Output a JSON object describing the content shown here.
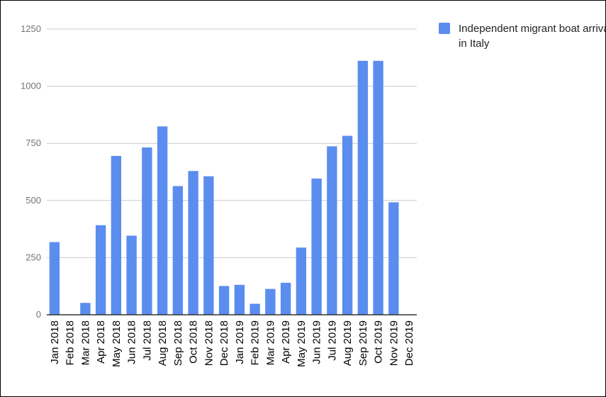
{
  "chart_data": {
    "type": "bar",
    "categories": [
      "Jan 2018",
      "Feb 2018",
      "Mar 2018",
      "Apr 2018",
      "May 2018",
      "Jun 2018",
      "Jul 2018",
      "Aug 2018",
      "Sep 2018",
      "Oct 2018",
      "Nov 2018",
      "Dec 2018",
      "Jan 2019",
      "Feb 2019",
      "Mar 2019",
      "Apr 2019",
      "May 2019",
      "Jun 2019",
      "Jul 2019",
      "Aug 2019",
      "Sep 2019",
      "Oct 2019",
      "Nov 2019",
      "Dec 2019"
    ],
    "series": [
      {
        "name": "Independent migrant boat arrivals in Italy",
        "values": [
          318,
          0,
          52,
          392,
          695,
          346,
          732,
          824,
          563,
          629,
          606,
          126,
          131,
          48,
          113,
          140,
          294,
          596,
          737,
          783,
          1111,
          1111,
          492,
          0
        ],
        "color": "#5b8def"
      }
    ],
    "ylim": [
      0,
      1250
    ],
    "yticks": [
      0,
      250,
      500,
      750,
      1000,
      1250
    ],
    "grid": true,
    "legend": "top-right",
    "title": "",
    "xlabel": "",
    "ylabel": ""
  }
}
